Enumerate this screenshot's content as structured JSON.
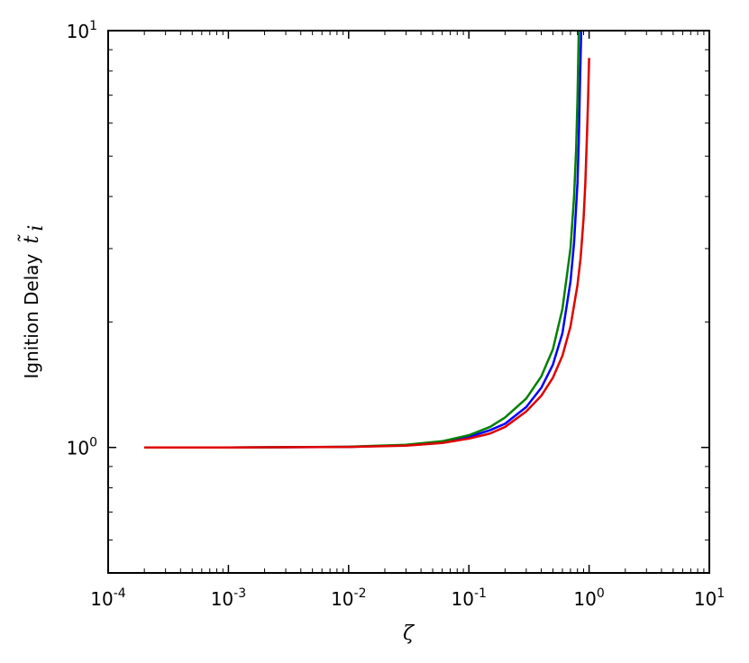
{
  "chart_data": {
    "type": "line",
    "title": "",
    "xlabel": "ζ",
    "ylabel": "Ignition Delay",
    "ylabel_math": "t̃",
    "ylabel_subscript": "i",
    "xscale": "log",
    "yscale": "log",
    "xlim": [
      0.0001,
      10
    ],
    "ylim": [
      0.5,
      10
    ],
    "grid": false,
    "legend": "none",
    "xticks": [
      {
        "base": "10",
        "exp": "-4",
        "value": 0.0001
      },
      {
        "base": "10",
        "exp": "-3",
        "value": 0.001
      },
      {
        "base": "10",
        "exp": "-2",
        "value": 0.01
      },
      {
        "base": "10",
        "exp": "-1",
        "value": 0.1
      },
      {
        "base": "10",
        "exp": "0",
        "value": 1
      },
      {
        "base": "10",
        "exp": "1",
        "value": 10
      }
    ],
    "yticks": [
      {
        "base": "10",
        "exp": "0",
        "value": 1
      },
      {
        "base": "10",
        "exp": "1",
        "value": 10
      }
    ],
    "series": [
      {
        "color": "#0000ff",
        "x": [
          0.0002,
          0.001,
          0.01,
          0.03,
          0.06,
          0.1,
          0.15,
          0.2,
          0.3,
          0.4,
          0.5,
          0.6,
          0.7,
          0.75,
          0.8,
          0.82,
          0.84,
          0.86
        ],
        "y": [
          1.0,
          1.0,
          1.003,
          1.012,
          1.03,
          1.06,
          1.1,
          1.14,
          1.25,
          1.39,
          1.58,
          1.88,
          2.5,
          3.1,
          4.3,
          5.4,
          7.5,
          10.0
        ]
      },
      {
        "color": "#008000",
        "x": [
          0.0002,
          0.001,
          0.01,
          0.03,
          0.06,
          0.1,
          0.15,
          0.2,
          0.3,
          0.4,
          0.5,
          0.6,
          0.7,
          0.75,
          0.78,
          0.8,
          0.81,
          0.82
        ],
        "y": [
          1.0,
          1.0,
          1.004,
          1.015,
          1.035,
          1.07,
          1.12,
          1.18,
          1.31,
          1.48,
          1.72,
          2.15,
          3.0,
          4.0,
          5.2,
          6.8,
          8.2,
          10.0
        ]
      },
      {
        "color": "#e00000",
        "x": [
          0.0002,
          0.001,
          0.01,
          0.03,
          0.06,
          0.1,
          0.15,
          0.2,
          0.3,
          0.4,
          0.5,
          0.6,
          0.7,
          0.8,
          0.85,
          0.9,
          0.93,
          0.96,
          0.98,
          1.0
        ],
        "y": [
          1.0,
          1.0,
          1.003,
          1.01,
          1.025,
          1.05,
          1.08,
          1.12,
          1.22,
          1.33,
          1.47,
          1.66,
          1.95,
          2.45,
          2.85,
          3.55,
          4.3,
          5.6,
          6.8,
          8.6
        ]
      }
    ]
  }
}
